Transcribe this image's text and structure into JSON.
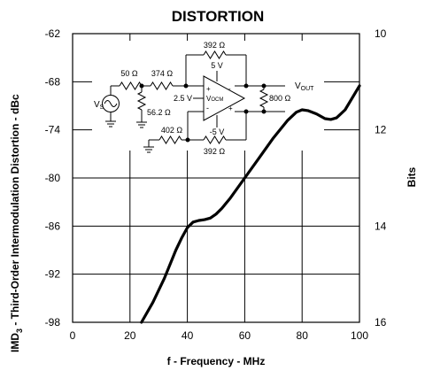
{
  "chart_data": {
    "type": "line",
    "title": "DISTORTION",
    "xlabel": "f - Frequency - MHz",
    "ylabel_main": "IMD",
    "ylabel_sub": "3",
    "ylabel_rest": " - Third-Order Intermodulation Distortion - dBc",
    "y2label": "Bits",
    "xlim": [
      0,
      100
    ],
    "ylim": [
      -98,
      -62
    ],
    "y2lim": [
      16,
      10
    ],
    "x_ticks": [
      "0",
      "20",
      "40",
      "60",
      "80",
      "100"
    ],
    "y_ticks": [
      "-62",
      "-68",
      "-74",
      "-80",
      "-86",
      "-92",
      "-98"
    ],
    "y2_ticks": [
      "10",
      "12",
      "14",
      "16"
    ],
    "grid": true,
    "series": [
      {
        "x": [
          24,
          28,
          32,
          36,
          38,
          40,
          42,
          44,
          46,
          48,
          50,
          52,
          55,
          60,
          65,
          70,
          75,
          78,
          80,
          82,
          85,
          88,
          90,
          92,
          95,
          100
        ],
        "y": [
          -98,
          -95.5,
          -92.5,
          -89,
          -87.5,
          -86.2,
          -85.5,
          -85.3,
          -85.2,
          -85,
          -84.5,
          -83.8,
          -82.5,
          -80,
          -77.5,
          -75,
          -72.8,
          -71.8,
          -71.5,
          -71.6,
          -72,
          -72.6,
          -72.7,
          -72.5,
          -71.5,
          -68.5
        ]
      }
    ]
  },
  "circuit": {
    "r_feedback_top": "392 Ω",
    "r_feedback_bottom": "392 Ω",
    "r_source": "50 Ω",
    "r_input_top": "374 Ω",
    "r_input_bottom": "402 Ω",
    "r_termination": "56.2 Ω",
    "r_load": "800 Ω",
    "supply_pos": "5 V",
    "supply_neg": "-5 V",
    "vocm_voltage": "2.5 V",
    "source_label": "V",
    "source_sub": "S",
    "output_label": "V",
    "output_sub": "OUT",
    "amp_label": "V",
    "amp_sub": "OCM"
  }
}
